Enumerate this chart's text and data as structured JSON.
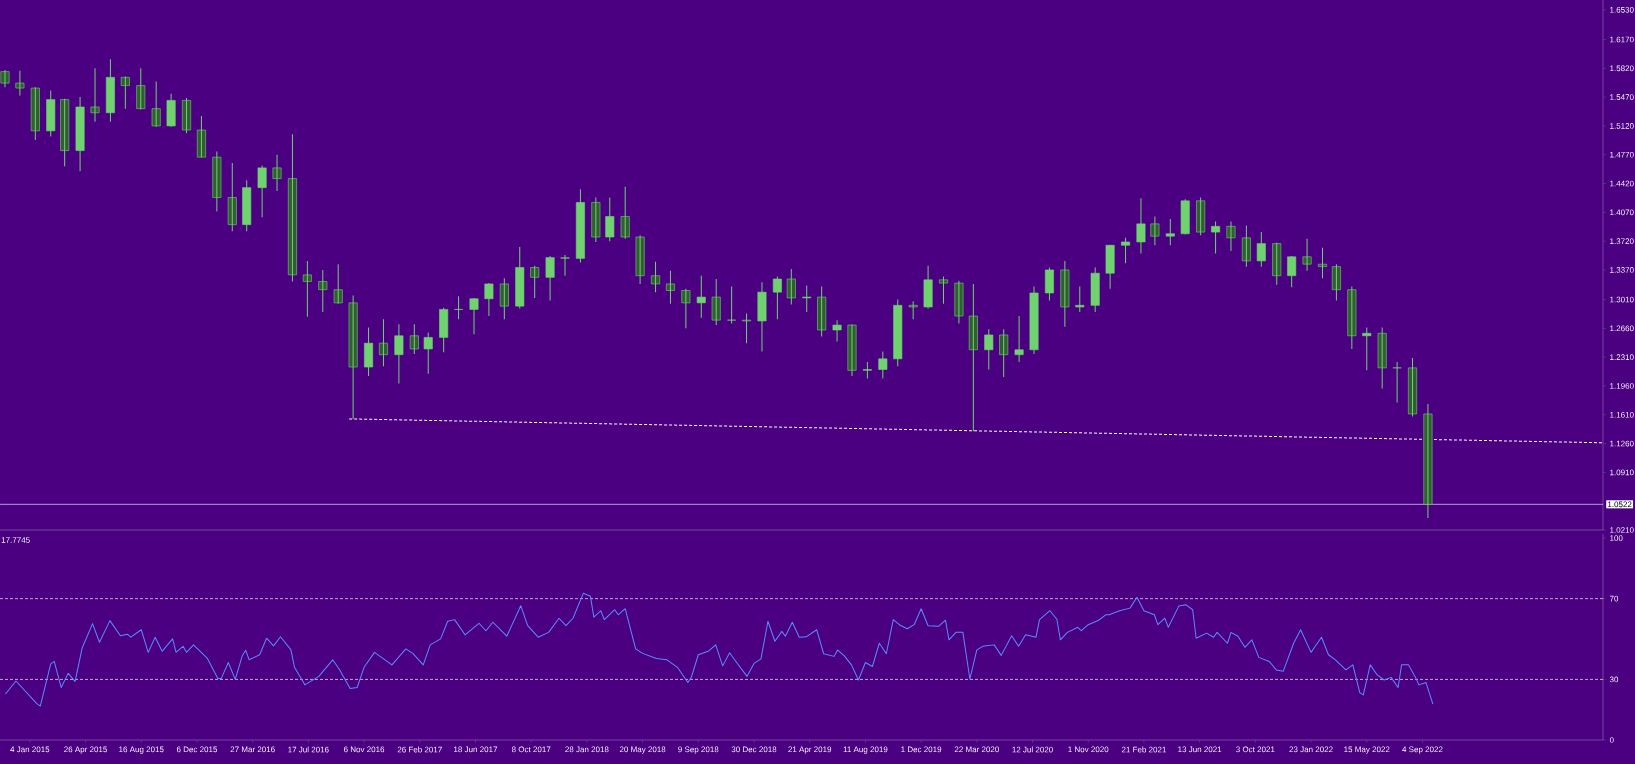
{
  "chart_data": [
    {
      "type": "candlestick",
      "color": "#6fd36f",
      "tick_labels": "y",
      "xlim": [
        "2014-11-05",
        "2023-09-02"
      ],
      "ylim": [
        1.021,
        1.665
      ],
      "yticks": [
        {
          "value": 1.653,
          "label": "1.6530"
        },
        {
          "value": 1.617,
          "label": "1.6170"
        },
        {
          "value": 1.582,
          "label": "1.5820"
        },
        {
          "value": 1.547,
          "label": "1.5470"
        },
        {
          "value": 1.512,
          "label": "1.5120"
        },
        {
          "value": 1.477,
          "label": "1.4770"
        },
        {
          "value": 1.442,
          "label": "1.4420"
        },
        {
          "value": 1.407,
          "label": "1.4070"
        },
        {
          "value": 1.372,
          "label": "1.3720"
        },
        {
          "value": 1.337,
          "label": "1.3370"
        },
        {
          "value": 1.301,
          "label": "1.3010"
        },
        {
          "value": 1.266,
          "label": "1.2660"
        },
        {
          "value": 1.231,
          "label": "1.2310"
        },
        {
          "value": 1.196,
          "label": "1.1960"
        },
        {
          "value": 1.161,
          "label": "1.1610"
        },
        {
          "value": 1.126,
          "label": "1.1260"
        },
        {
          "value": 1.091,
          "label": "1.0910"
        },
        {
          "value": 1.021,
          "label": "1.0210"
        }
      ],
      "ref_lines": [
        {
          "axis": "y",
          "value": 1.0522,
          "label": "1.0522",
          "color": "#c8c8e8",
          "line_style": "solid"
        }
      ],
      "series": [
        {
          "type": "line",
          "x": [
            "2016-10-07",
            "2023-09-02"
          ],
          "values": [
            1.156,
            1.127
          ],
          "color": "#ffffff",
          "line_style": "dashed"
        }
      ],
      "x": [
        "2014-11-15",
        "2014-12-15",
        "2015-01-15",
        "2015-02-15",
        "2015-03-15",
        "2015-04-15",
        "2015-05-15",
        "2015-06-15",
        "2015-07-15",
        "2015-08-15",
        "2015-09-15",
        "2015-10-15",
        "2015-11-15",
        "2015-12-15",
        "2016-01-15",
        "2016-02-15",
        "2016-03-15",
        "2016-04-15",
        "2016-05-15",
        "2016-06-15",
        "2016-07-15",
        "2016-08-15",
        "2016-09-15",
        "2016-10-15",
        "2016-11-15",
        "2016-12-15",
        "2017-01-15",
        "2017-02-15",
        "2017-03-15",
        "2017-04-15",
        "2017-05-15",
        "2017-06-15",
        "2017-07-15",
        "2017-08-15",
        "2017-09-15",
        "2017-10-15",
        "2017-11-15",
        "2017-12-15",
        "2018-01-15",
        "2018-02-15",
        "2018-03-15",
        "2018-04-15",
        "2018-05-15",
        "2018-06-15",
        "2018-07-15",
        "2018-08-15",
        "2018-09-15",
        "2018-10-15",
        "2018-11-15",
        "2018-12-15",
        "2019-01-15",
        "2019-02-15",
        "2019-03-15",
        "2019-04-15",
        "2019-05-15",
        "2019-06-15",
        "2019-07-15",
        "2019-08-15",
        "2019-09-15",
        "2019-10-15",
        "2019-11-15",
        "2019-12-15",
        "2020-01-15",
        "2020-02-15",
        "2020-03-15",
        "2020-04-15",
        "2020-05-15",
        "2020-06-15",
        "2020-07-15",
        "2020-08-15",
        "2020-09-15",
        "2020-10-15",
        "2020-11-15",
        "2020-12-15",
        "2021-01-15",
        "2021-02-15",
        "2021-03-15",
        "2021-04-15",
        "2021-05-15",
        "2021-06-15",
        "2021-07-15",
        "2021-08-15",
        "2021-09-15",
        "2021-10-15",
        "2021-11-15",
        "2021-12-15",
        "2022-01-15",
        "2022-02-15",
        "2022-03-15",
        "2022-04-15",
        "2022-05-15",
        "2022-06-15",
        "2022-07-15",
        "2022-08-15",
        "2022-09-15"
      ],
      "ohlc": [
        [
          1.578,
          1.58,
          1.559,
          1.564
        ],
        [
          1.564,
          1.579,
          1.549,
          1.558
        ],
        [
          1.558,
          1.559,
          1.495,
          1.506
        ],
        [
          1.506,
          1.555,
          1.499,
          1.544
        ],
        [
          1.544,
          1.545,
          1.463,
          1.482
        ],
        [
          1.482,
          1.547,
          1.457,
          1.535
        ],
        [
          1.535,
          1.582,
          1.517,
          1.528
        ],
        [
          1.528,
          1.593,
          1.517,
          1.571
        ],
        [
          1.571,
          1.572,
          1.533,
          1.561
        ],
        [
          1.561,
          1.582,
          1.532,
          1.533
        ],
        [
          1.533,
          1.566,
          1.511,
          1.512
        ],
        [
          1.512,
          1.551,
          1.511,
          1.543
        ],
        [
          1.543,
          1.546,
          1.503,
          1.507
        ],
        [
          1.507,
          1.524,
          1.474,
          1.474
        ],
        [
          1.474,
          1.481,
          1.408,
          1.425
        ],
        [
          1.425,
          1.467,
          1.384,
          1.392
        ],
        [
          1.392,
          1.446,
          1.384,
          1.437
        ],
        [
          1.437,
          1.464,
          1.401,
          1.461
        ],
        [
          1.461,
          1.477,
          1.433,
          1.448
        ],
        [
          1.448,
          1.502,
          1.323,
          1.331
        ],
        [
          1.331,
          1.348,
          1.28,
          1.323
        ],
        [
          1.323,
          1.337,
          1.286,
          1.313
        ],
        [
          1.313,
          1.344,
          1.296,
          1.297
        ],
        [
          1.297,
          1.306,
          1.156,
          1.219
        ],
        [
          1.219,
          1.267,
          1.208,
          1.248
        ],
        [
          1.248,
          1.277,
          1.22,
          1.234
        ],
        [
          1.234,
          1.271,
          1.199,
          1.257
        ],
        [
          1.257,
          1.271,
          1.235,
          1.241
        ],
        [
          1.241,
          1.261,
          1.211,
          1.255
        ],
        [
          1.255,
          1.291,
          1.237,
          1.289
        ],
        [
          1.289,
          1.305,
          1.277,
          1.289
        ],
        [
          1.289,
          1.303,
          1.259,
          1.302
        ],
        [
          1.302,
          1.321,
          1.281,
          1.32
        ],
        [
          1.32,
          1.327,
          1.277,
          1.293
        ],
        [
          1.293,
          1.365,
          1.29,
          1.34
        ],
        [
          1.34,
          1.342,
          1.303,
          1.328
        ],
        [
          1.328,
          1.354,
          1.3,
          1.352
        ],
        [
          1.352,
          1.355,
          1.33,
          1.351
        ],
        [
          1.351,
          1.435,
          1.346,
          1.419
        ],
        [
          1.419,
          1.425,
          1.371,
          1.377
        ],
        [
          1.377,
          1.425,
          1.372,
          1.402
        ],
        [
          1.402,
          1.438,
          1.375,
          1.377
        ],
        [
          1.377,
          1.379,
          1.32,
          1.33
        ],
        [
          1.33,
          1.347,
          1.31,
          1.32
        ],
        [
          1.32,
          1.336,
          1.296,
          1.312
        ],
        [
          1.312,
          1.314,
          1.266,
          1.297
        ],
        [
          1.297,
          1.33,
          1.279,
          1.304
        ],
        [
          1.304,
          1.326,
          1.27,
          1.276
        ],
        [
          1.276,
          1.317,
          1.272,
          1.276
        ],
        [
          1.276,
          1.284,
          1.248,
          1.275
        ],
        [
          1.275,
          1.322,
          1.238,
          1.31
        ],
        [
          1.31,
          1.329,
          1.277,
          1.326
        ],
        [
          1.326,
          1.338,
          1.295,
          1.303
        ],
        [
          1.303,
          1.318,
          1.286,
          1.304
        ],
        [
          1.304,
          1.317,
          1.256,
          1.264
        ],
        [
          1.264,
          1.276,
          1.25,
          1.27
        ],
        [
          1.27,
          1.271,
          1.208,
          1.215
        ],
        [
          1.215,
          1.225,
          1.205,
          1.216
        ],
        [
          1.216,
          1.238,
          1.205,
          1.229
        ],
        [
          1.229,
          1.301,
          1.22,
          1.294
        ],
        [
          1.294,
          1.299,
          1.277,
          1.292
        ],
        [
          1.292,
          1.342,
          1.29,
          1.325
        ],
        [
          1.325,
          1.329,
          1.296,
          1.321
        ],
        [
          1.321,
          1.324,
          1.272,
          1.281
        ],
        [
          1.281,
          1.32,
          1.141,
          1.24
        ],
        [
          1.24,
          1.265,
          1.216,
          1.258
        ],
        [
          1.258,
          1.265,
          1.207,
          1.234
        ],
        [
          1.234,
          1.281,
          1.225,
          1.24
        ],
        [
          1.24,
          1.317,
          1.235,
          1.309
        ],
        [
          1.309,
          1.34,
          1.3,
          1.337
        ],
        [
          1.337,
          1.348,
          1.268,
          1.292
        ],
        [
          1.292,
          1.317,
          1.286,
          1.294
        ],
        [
          1.294,
          1.34,
          1.286,
          1.333
        ],
        [
          1.333,
          1.367,
          1.314,
          1.367
        ],
        [
          1.367,
          1.376,
          1.345,
          1.371
        ],
        [
          1.371,
          1.424,
          1.357,
          1.393
        ],
        [
          1.393,
          1.402,
          1.367,
          1.378
        ],
        [
          1.378,
          1.399,
          1.367,
          1.381
        ],
        [
          1.381,
          1.423,
          1.38,
          1.421
        ],
        [
          1.421,
          1.425,
          1.379,
          1.383
        ],
        [
          1.383,
          1.396,
          1.357,
          1.39
        ],
        [
          1.39,
          1.396,
          1.36,
          1.376
        ],
        [
          1.376,
          1.391,
          1.341,
          1.348
        ],
        [
          1.348,
          1.383,
          1.341,
          1.369
        ],
        [
          1.369,
          1.37,
          1.319,
          1.33
        ],
        [
          1.33,
          1.354,
          1.316,
          1.353
        ],
        [
          1.353,
          1.375,
          1.336,
          1.344
        ],
        [
          1.344,
          1.364,
          1.327,
          1.341
        ],
        [
          1.341,
          1.344,
          1.3,
          1.313
        ],
        [
          1.313,
          1.317,
          1.241,
          1.257
        ],
        [
          1.257,
          1.267,
          1.215,
          1.26
        ],
        [
          1.26,
          1.267,
          1.193,
          1.218
        ],
        [
          1.218,
          1.225,
          1.176,
          1.218
        ],
        [
          1.218,
          1.23,
          1.159,
          1.162
        ],
        [
          1.162,
          1.174,
          1.0356,
          1.0522
        ]
      ]
    },
    {
      "type": "line",
      "color": "#5a8cff",
      "xlim": [
        "2014-11-05",
        "2023-09-02"
      ],
      "ylim": [
        0,
        102
      ],
      "yticks": [
        0,
        30,
        70,
        100
      ],
      "xticks": [
        {
          "value": "2015-01-04",
          "label": "4 Jan 2015"
        },
        {
          "value": "2015-04-26",
          "label": "26 Apr 2015"
        },
        {
          "value": "2015-08-16",
          "label": "16 Aug 2015"
        },
        {
          "value": "2015-12-06",
          "label": "6 Dec 2015"
        },
        {
          "value": "2016-03-27",
          "label": "27 Mar 2016"
        },
        {
          "value": "2016-07-17",
          "label": "17 Jul 2016"
        },
        {
          "value": "2016-11-06",
          "label": "6 Nov 2016"
        },
        {
          "value": "2017-02-26",
          "label": "26 Feb 2017"
        },
        {
          "value": "2017-06-18",
          "label": "18 Jun 2017"
        },
        {
          "value": "2017-10-08",
          "label": "8 Oct 2017"
        },
        {
          "value": "2018-01-28",
          "label": "28 Jan 2018"
        },
        {
          "value": "2018-05-20",
          "label": "20 May 2018"
        },
        {
          "value": "2018-09-09",
          "label": "9 Sep 2018"
        },
        {
          "value": "2018-12-30",
          "label": "30 Dec 2018"
        },
        {
          "value": "2019-04-21",
          "label": "21 Apr 2019"
        },
        {
          "value": "2019-08-11",
          "label": "11 Aug 2019"
        },
        {
          "value": "2019-12-01",
          "label": "1 Dec 2019"
        },
        {
          "value": "2020-03-22",
          "label": "22 Mar 2020"
        },
        {
          "value": "2020-07-12",
          "label": "12 Jul 2020"
        },
        {
          "value": "2020-11-01",
          "label": "1 Nov 2020"
        },
        {
          "value": "2021-02-21",
          "label": "21 Feb 2021"
        },
        {
          "value": "2021-06-13",
          "label": "13 Jun 2021"
        },
        {
          "value": "2021-10-03",
          "label": "3 Oct 2021"
        },
        {
          "value": "2022-01-23",
          "label": "23 Jan 2022"
        },
        {
          "value": "2022-05-15",
          "label": "15 May 2022"
        },
        {
          "value": "2022-09-04",
          "label": "4 Sep 2022"
        }
      ],
      "ref_lines": [
        {
          "axis": "y",
          "value": 70,
          "color": "#d8d8d8",
          "line_style": "dashed"
        },
        {
          "axis": "y",
          "value": 30,
          "color": "#d8d8d8",
          "line_style": "dashed"
        }
      ],
      "annotations": [
        "17.7745"
      ],
      "x": [
        "2014-11-16",
        "2014-12-07",
        "2015-01-18",
        "2015-01-25",
        "2015-02-15",
        "2015-02-22",
        "2015-03-08",
        "2015-03-22",
        "2015-04-05",
        "2015-04-19",
        "2015-05-10",
        "2015-05-24",
        "2015-06-14",
        "2015-07-05",
        "2015-07-19",
        "2015-07-26",
        "2015-08-16",
        "2015-08-30",
        "2015-09-13",
        "2015-09-27",
        "2015-10-18",
        "2015-10-25",
        "2015-11-08",
        "2015-11-15",
        "2015-11-29",
        "2015-12-27",
        "2016-01-17",
        "2016-01-24",
        "2016-02-07",
        "2016-02-21",
        "2016-03-06",
        "2016-03-13",
        "2016-03-20",
        "2016-04-10",
        "2016-04-24",
        "2016-05-08",
        "2016-05-22",
        "2016-06-12",
        "2016-06-19",
        "2016-07-10",
        "2016-08-07",
        "2016-09-04",
        "2016-09-18",
        "2016-10-09",
        "2016-10-23",
        "2016-11-06",
        "2016-11-27",
        "2017-01-01",
        "2017-01-29",
        "2017-02-12",
        "2017-03-05",
        "2017-03-19",
        "2017-04-09",
        "2017-04-23",
        "2017-05-07",
        "2017-05-28",
        "2017-06-25",
        "2017-07-09",
        "2017-07-23",
        "2017-08-20",
        "2017-09-17",
        "2017-10-01",
        "2017-10-22",
        "2017-11-12",
        "2017-12-03",
        "2017-12-17",
        "2017-12-31",
        "2018-01-21",
        "2018-02-04",
        "2018-02-11",
        "2018-02-25",
        "2018-03-04",
        "2018-03-25",
        "2018-04-01",
        "2018-04-15",
        "2018-05-06",
        "2018-05-20",
        "2018-06-17",
        "2018-07-08",
        "2018-07-29",
        "2018-08-19",
        "2018-08-26",
        "2018-09-09",
        "2018-09-30",
        "2018-10-14",
        "2018-10-28",
        "2018-11-11",
        "2018-11-25",
        "2018-12-16",
        "2018-12-30",
        "2019-01-13",
        "2019-01-27",
        "2019-02-10",
        "2019-02-24",
        "2019-03-03",
        "2019-03-17",
        "2019-03-31",
        "2019-04-14",
        "2019-05-05",
        "2019-05-19",
        "2019-06-09",
        "2019-06-16",
        "2019-06-30",
        "2019-07-14",
        "2019-07-28",
        "2019-08-11",
        "2019-08-25",
        "2019-09-08",
        "2019-09-22",
        "2019-10-06",
        "2019-10-20",
        "2019-11-03",
        "2019-11-17",
        "2019-12-01",
        "2019-12-15",
        "2020-01-05",
        "2020-01-19",
        "2020-01-26",
        "2020-02-09",
        "2020-02-23",
        "2020-03-08",
        "2020-03-22",
        "2020-04-05",
        "2020-04-26",
        "2020-05-10",
        "2020-05-31",
        "2020-06-14",
        "2020-06-28",
        "2020-07-19",
        "2020-07-26",
        "2020-08-16",
        "2020-08-30",
        "2020-09-06",
        "2020-09-20",
        "2020-10-11",
        "2020-10-18",
        "2020-11-01",
        "2020-11-22",
        "2020-12-06",
        "2020-12-13",
        "2021-01-03",
        "2021-01-24",
        "2021-02-07",
        "2021-02-21",
        "2021-03-14",
        "2021-03-21",
        "2021-04-04",
        "2021-04-11",
        "2021-05-02",
        "2021-05-16",
        "2021-05-30",
        "2021-06-06",
        "2021-06-27",
        "2021-07-11",
        "2021-07-18",
        "2021-08-08",
        "2021-08-15",
        "2021-08-29",
        "2021-09-12",
        "2021-09-26",
        "2021-10-10",
        "2021-10-31",
        "2021-11-14",
        "2021-11-28",
        "2021-12-19",
        "2022-01-02",
        "2022-01-23",
        "2022-01-30",
        "2022-02-13",
        "2022-02-27",
        "2022-03-13",
        "2022-04-03",
        "2022-04-17",
        "2022-05-01",
        "2022-05-08",
        "2022-05-22",
        "2022-06-05",
        "2022-06-19",
        "2022-07-03",
        "2022-07-17",
        "2022-07-24",
        "2022-08-07",
        "2022-08-21",
        "2022-08-28",
        "2022-09-11",
        "2022-09-25"
      ],
      "values": [
        22.8,
        29.2,
        18.0,
        16.8,
        37.7,
        38.9,
        26.0,
        33.0,
        29.0,
        45.4,
        57.6,
        48.4,
        59.1,
        51.6,
        52.4,
        50.9,
        54.6,
        43.4,
        50.9,
        43.9,
        50.1,
        43.4,
        46.4,
        43.4,
        47.1,
        40.4,
        30.5,
        30.5,
        38.4,
        30.0,
        41.7,
        44.4,
        39.7,
        42.2,
        50.4,
        46.6,
        51.1,
        44.6,
        36.0,
        27.3,
        31.5,
        39.7,
        34.7,
        25.5,
        26.0,
        36.0,
        43.4,
        37.2,
        45.1,
        42.9,
        37.2,
        47.1,
        50.1,
        58.8,
        59.6,
        52.1,
        57.8,
        54.1,
        58.3,
        51.4,
        66.5,
        56.6,
        50.9,
        53.3,
        60.3,
        56.6,
        60.3,
        72.7,
        71.2,
        60.8,
        64.0,
        59.6,
        64.5,
        62.0,
        65.0,
        45.1,
        42.9,
        40.4,
        39.7,
        36.0,
        28.5,
        31.0,
        42.2,
        44.1,
        47.1,
        36.7,
        43.2,
        38.4,
        31.5,
        37.9,
        40.2,
        58.8,
        48.9,
        53.8,
        51.4,
        58.3,
        50.9,
        51.1,
        54.6,
        42.7,
        41.4,
        44.6,
        41.5,
        37.2,
        29.7,
        38.4,
        36.4,
        47.9,
        42.7,
        59.6,
        56.8,
        55.1,
        57.1,
        65.0,
        56.6,
        56.3,
        59.3,
        49.6,
        53.3,
        53.3,
        30.2,
        44.6,
        46.6,
        47.1,
        41.9,
        51.6,
        46.4,
        52.1,
        50.9,
        59.6,
        64.0,
        59.8,
        49.6,
        53.3,
        55.8,
        54.1,
        57.1,
        59.3,
        62.0,
        62.0,
        64.0,
        65.3,
        70.7,
        64.0,
        62.0,
        57.1,
        60.3,
        55.8,
        66.3,
        67.0,
        64.5,
        50.4,
        52.9,
        50.9,
        53.3,
        47.9,
        53.3,
        51.4,
        45.9,
        49.6,
        40.9,
        38.9,
        34.7,
        34.0,
        47.9,
        54.6,
        43.4,
        45.9,
        50.9,
        42.2,
        39.7,
        34.7,
        37.2,
        23.5,
        22.3,
        37.2,
        32.2,
        29.7,
        31.0,
        26.0,
        37.2,
        37.2,
        31.0,
        27.3,
        28.5,
        17.8
      ]
    }
  ]
}
